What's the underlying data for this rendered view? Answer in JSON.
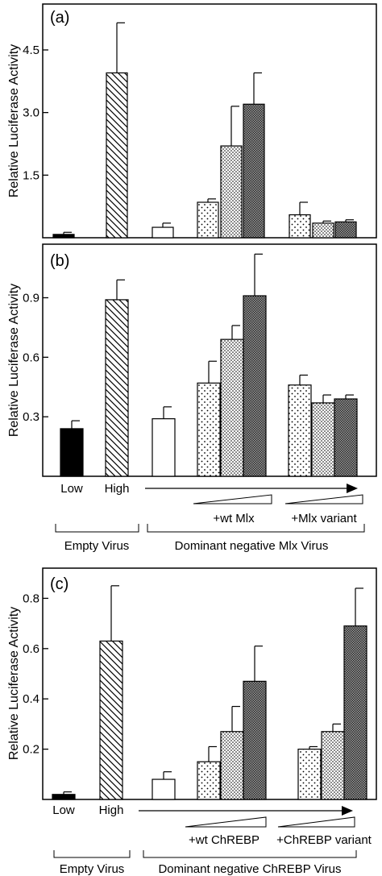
{
  "chart_data": [
    {
      "type": "bar",
      "panel_label": "(a)",
      "ylabel": "Relative Luciferase Activity",
      "yticks": [
        "1.5",
        "3.0",
        "4.5"
      ],
      "ytick_values": [
        1.5,
        3.0,
        4.5
      ],
      "ylim": [
        0,
        5.6
      ],
      "bars": [
        {
          "value": 0.08,
          "error": 0.05,
          "pattern": "black"
        },
        {
          "value": 3.95,
          "error": 1.2,
          "pattern": "hatch"
        },
        {
          "value": 0.25,
          "error": 0.1,
          "pattern": "white"
        },
        {
          "value": 0.85,
          "error": 0.08,
          "pattern": "dots-sparse"
        },
        {
          "value": 2.2,
          "error": 0.95,
          "pattern": "dots-dense"
        },
        {
          "value": 3.2,
          "error": 0.75,
          "pattern": "crosshatch"
        },
        {
          "value": 0.55,
          "error": 0.3,
          "pattern": "dots-sparse"
        },
        {
          "value": 0.35,
          "error": 0.05,
          "pattern": "dots-dense"
        },
        {
          "value": 0.38,
          "error": 0.05,
          "pattern": "crosshatch"
        }
      ]
    },
    {
      "type": "bar",
      "panel_label": "(b)",
      "ylabel": "Relative Luciferase Activity",
      "yticks": [
        "0.3",
        "0.6",
        "0.9"
      ],
      "ytick_values": [
        0.3,
        0.6,
        0.9
      ],
      "ylim": [
        0,
        1.17
      ],
      "bars": [
        {
          "value": 0.24,
          "error": 0.04,
          "pattern": "black"
        },
        {
          "value": 0.89,
          "error": 0.1,
          "pattern": "hatch"
        },
        {
          "value": 0.29,
          "error": 0.06,
          "pattern": "white"
        },
        {
          "value": 0.47,
          "error": 0.11,
          "pattern": "dots-sparse"
        },
        {
          "value": 0.69,
          "error": 0.07,
          "pattern": "dots-dense"
        },
        {
          "value": 0.91,
          "error": 0.21,
          "pattern": "crosshatch"
        },
        {
          "value": 0.46,
          "error": 0.05,
          "pattern": "dots-sparse"
        },
        {
          "value": 0.37,
          "error": 0.04,
          "pattern": "dots-dense"
        },
        {
          "value": 0.39,
          "error": 0.02,
          "pattern": "crosshatch"
        }
      ],
      "x_labels": [
        "Low",
        "High"
      ],
      "sub_labels": [
        "+wt Mlx",
        "+Mlx variant"
      ],
      "group_labels": [
        "Empty Virus",
        "Dominant negative Mlx Virus"
      ]
    },
    {
      "type": "bar",
      "panel_label": "(c)",
      "ylabel": "Relative Luciferase Activity",
      "yticks": [
        "0.2",
        "0.4",
        "0.6",
        "0.8"
      ],
      "ytick_values": [
        0.2,
        0.4,
        0.6,
        0.8
      ],
      "ylim": [
        0,
        0.92
      ],
      "bars": [
        {
          "value": 0.02,
          "error": 0.01,
          "pattern": "black"
        },
        {
          "value": 0.63,
          "error": 0.22,
          "pattern": "hatch"
        },
        {
          "value": 0.08,
          "error": 0.03,
          "pattern": "white"
        },
        {
          "value": 0.15,
          "error": 0.06,
          "pattern": "dots-sparse"
        },
        {
          "value": 0.27,
          "error": 0.1,
          "pattern": "dots-dense"
        },
        {
          "value": 0.47,
          "error": 0.14,
          "pattern": "crosshatch"
        },
        {
          "value": 0.2,
          "error": 0.01,
          "pattern": "dots-sparse"
        },
        {
          "value": 0.27,
          "error": 0.03,
          "pattern": "dots-dense"
        },
        {
          "value": 0.69,
          "error": 0.15,
          "pattern": "crosshatch"
        }
      ],
      "x_labels": [
        "Low",
        "High"
      ],
      "sub_labels": [
        "+wt ChREBP",
        "+ChREBP variant"
      ],
      "group_labels": [
        "Empty Virus",
        "Dominant negative ChREBP Virus"
      ]
    }
  ]
}
